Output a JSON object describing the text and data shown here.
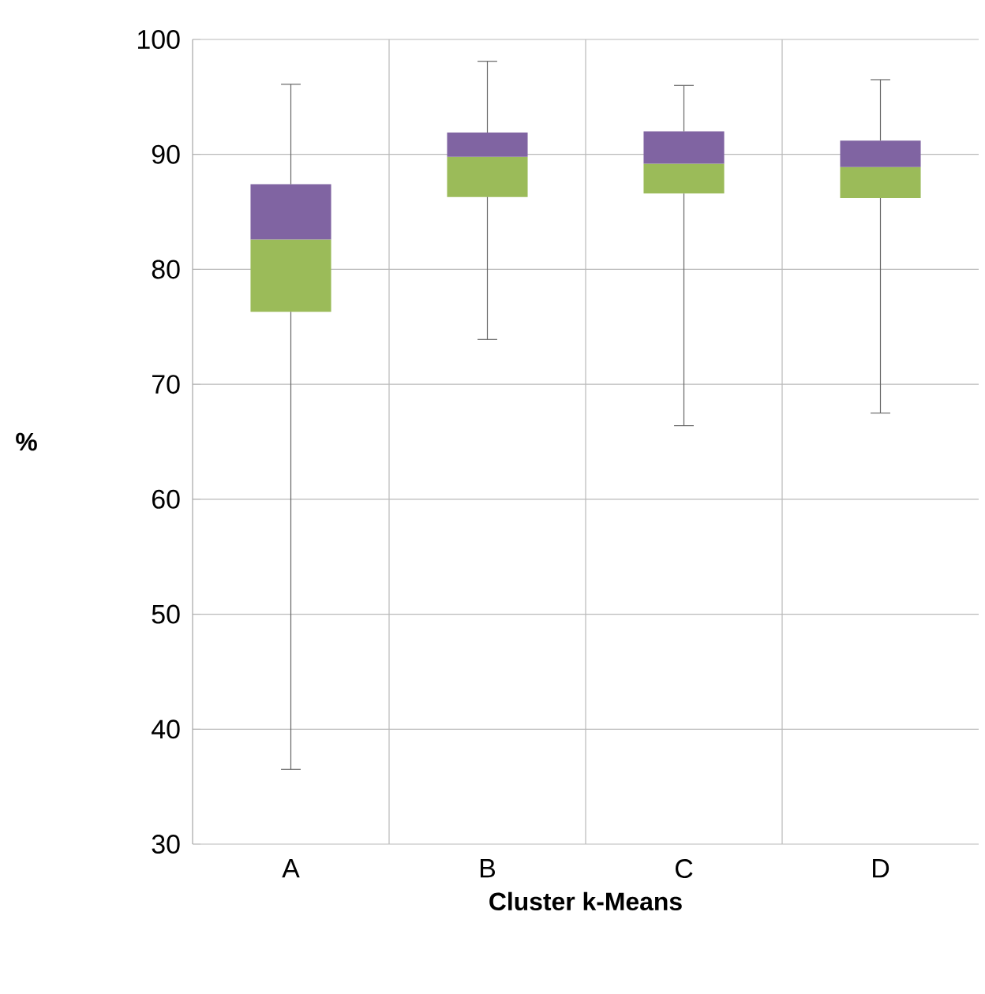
{
  "chart_data": {
    "type": "box",
    "xlabel": "Cluster k-Means",
    "ylabel": "%",
    "categories": [
      "A",
      "B",
      "C",
      "D"
    ],
    "colors": [
      [
        "#9bbb59",
        "#8064a2"
      ],
      [
        "#9bbb59",
        "#8064a2"
      ],
      [
        "#9bbb59",
        "#8064a2"
      ],
      [
        "#9bbb59",
        "#8064a2"
      ]
    ],
    "boxes": [
      {
        "low": 36.5,
        "q1": 76.3,
        "median": 82.6,
        "q3": 87.4,
        "high": 96.1
      },
      {
        "low": 73.9,
        "q1": 86.3,
        "median": 89.8,
        "q3": 91.9,
        "high": 98.1
      },
      {
        "low": 66.4,
        "q1": 86.6,
        "median": 89.2,
        "q3": 92.0,
        "high": 96.0
      },
      {
        "low": 67.5,
        "q1": 86.2,
        "median": 88.9,
        "q3": 91.2,
        "high": 96.5
      }
    ],
    "ylim": [
      30,
      100
    ],
    "yticks": [
      30,
      40,
      50,
      60,
      70,
      80,
      90,
      100
    ],
    "grid": true
  }
}
